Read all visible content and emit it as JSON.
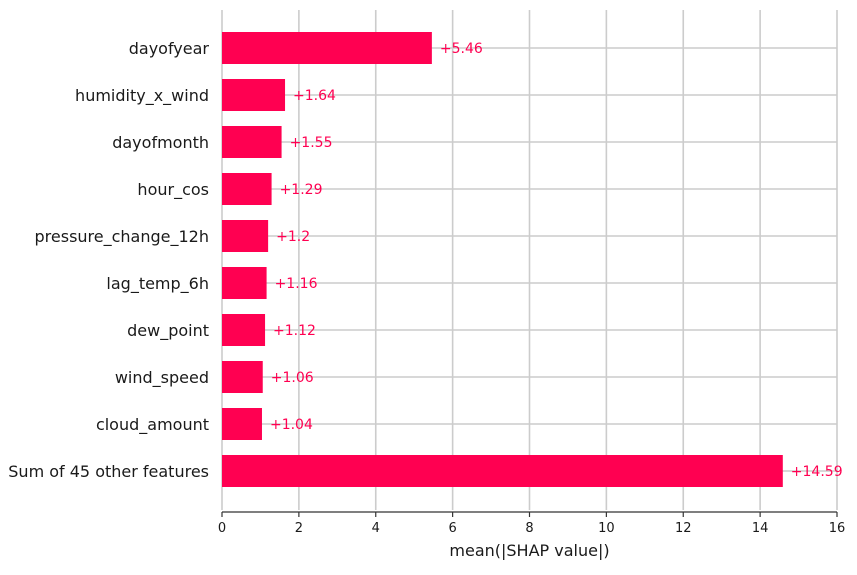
{
  "chart_data": {
    "type": "bar",
    "orientation": "horizontal",
    "title": "",
    "xlabel": "mean(|SHAP value|)",
    "ylabel": "",
    "xlim": [
      0,
      16
    ],
    "x_ticks": [
      0,
      2,
      4,
      6,
      8,
      10,
      12,
      14,
      16
    ],
    "grid": true,
    "categories": [
      "dayofyear",
      "humidity_x_wind",
      "dayofmonth",
      "hour_cos",
      "pressure_change_12h",
      "lag_temp_6h",
      "dew_point",
      "wind_speed",
      "cloud_amount",
      "Sum of 45 other features"
    ],
    "values": [
      5.46,
      1.64,
      1.55,
      1.29,
      1.2,
      1.16,
      1.12,
      1.06,
      1.04,
      14.59
    ],
    "value_labels": [
      "+5.46",
      "+1.64",
      "+1.55",
      "+1.29",
      "+1.2",
      "+1.16",
      "+1.12",
      "+1.06",
      "+1.04",
      "+14.59"
    ],
    "bar_color": "#ff0051",
    "label_color": "#ff0051",
    "grid_color": "#cccccc"
  }
}
